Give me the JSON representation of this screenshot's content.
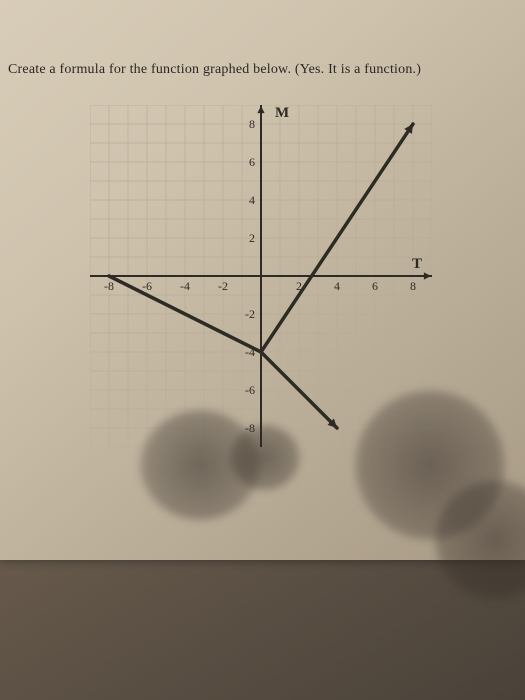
{
  "prompt": "Create a formula for the function graphed below. (Yes. It is a function.)",
  "chart": {
    "type": "line",
    "y_axis_label": "M",
    "x_axis_label": "T",
    "xlim": [
      -9,
      9
    ],
    "ylim": [
      -9,
      9
    ],
    "minor_tick_step": 1,
    "xticks": [
      -8,
      -6,
      -4,
      -2,
      2,
      4,
      6,
      8
    ],
    "yticks": [
      -8,
      -6,
      -4,
      -2,
      2,
      4,
      6,
      8
    ],
    "grid_color": "#b8ad98",
    "axis_color": "#2e2a24",
    "axis_width": 2,
    "tick_label_fontsize": 12,
    "axis_label_fontsize": 15,
    "function_line_color": "#2e2a24",
    "function_line_width": 3.5,
    "lines": [
      {
        "from": [
          -8,
          0
        ],
        "to": [
          0,
          -4
        ],
        "arrow_start": false,
        "arrow_end": false
      },
      {
        "from": [
          0,
          -4
        ],
        "to": [
          8,
          8
        ],
        "arrow_start": false,
        "arrow_end": true
      },
      {
        "from": [
          0,
          -4
        ],
        "to": [
          4,
          -8
        ],
        "arrow_start": false,
        "arrow_end": true
      }
    ],
    "background_color": "transparent"
  }
}
